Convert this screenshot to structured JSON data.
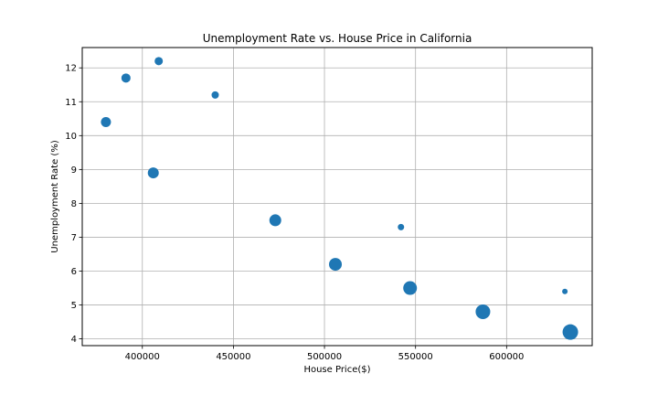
{
  "chart_data": {
    "type": "scatter",
    "title": "Unemployment Rate vs. House Price in California",
    "xlabel": "House Price($)",
    "ylabel": "Unemployment Rate (%)",
    "xlim": [
      367000,
      647000
    ],
    "ylim": [
      3.8,
      12.6
    ],
    "xticks": [
      400000,
      450000,
      500000,
      550000,
      600000
    ],
    "xtick_labels": [
      "400000",
      "450000",
      "500000",
      "550000",
      "600000"
    ],
    "yticks": [
      4,
      5,
      6,
      7,
      8,
      9,
      10,
      11,
      12
    ],
    "ytick_labels": [
      "4",
      "5",
      "6",
      "7",
      "8",
      "9",
      "10",
      "11",
      "12"
    ],
    "grid": true,
    "marker_color": "#1f77b4",
    "points": [
      {
        "x": 380000,
        "y": 10.4,
        "size": 11
      },
      {
        "x": 391000,
        "y": 11.7,
        "size": 10
      },
      {
        "x": 406000,
        "y": 8.9,
        "size": 12
      },
      {
        "x": 409000,
        "y": 12.2,
        "size": 9
      },
      {
        "x": 440000,
        "y": 11.2,
        "size": 8
      },
      {
        "x": 473000,
        "y": 7.5,
        "size": 13
      },
      {
        "x": 506000,
        "y": 6.2,
        "size": 14
      },
      {
        "x": 542000,
        "y": 7.3,
        "size": 7
      },
      {
        "x": 547000,
        "y": 5.5,
        "size": 15
      },
      {
        "x": 587000,
        "y": 4.8,
        "size": 16
      },
      {
        "x": 632000,
        "y": 5.4,
        "size": 6
      },
      {
        "x": 635000,
        "y": 4.2,
        "size": 17
      }
    ]
  }
}
